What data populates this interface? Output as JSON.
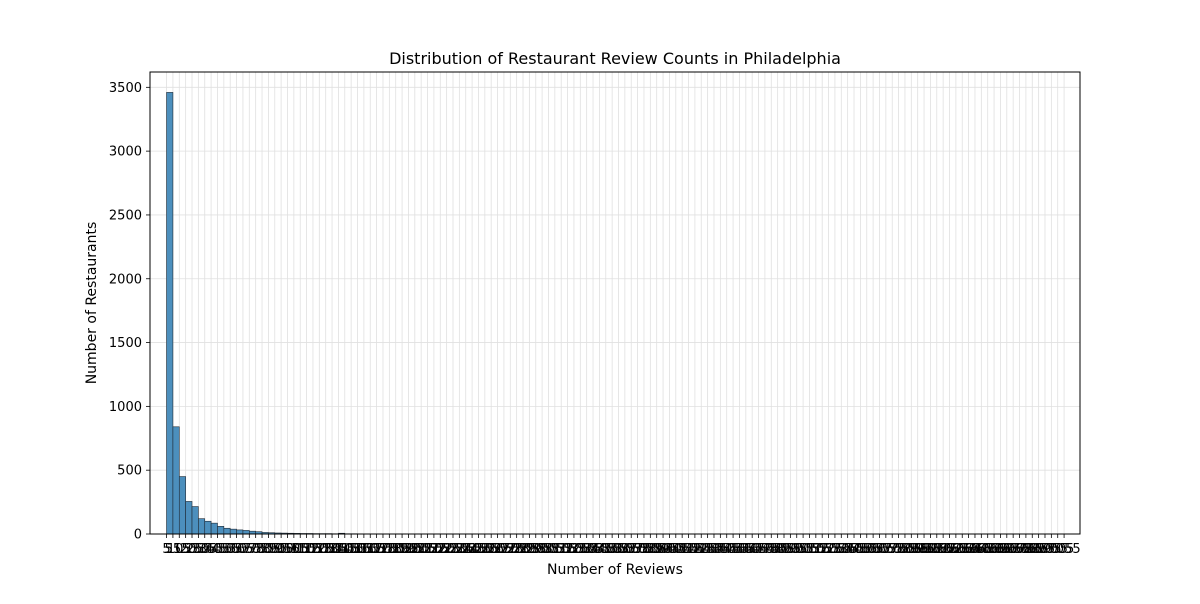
{
  "chart_data": {
    "type": "bar",
    "title": "Distribution of Restaurant Review Counts in Philadelphia",
    "xlabel": "Number of Reviews",
    "ylabel": "Number of Restaurants",
    "bin_width": 50,
    "x_start": 5,
    "x_end": 7050,
    "ylim": [
      0,
      3620
    ],
    "yticks": [
      0,
      500,
      1000,
      1500,
      2000,
      2500,
      3000,
      3500
    ],
    "grid": true,
    "legend": "none",
    "bar_color": "#4c8fbd",
    "bar_edge_color": "#1f2a35",
    "grid_color": "#e0e0e0",
    "values": [
      3460,
      840,
      450,
      255,
      215,
      120,
      100,
      85,
      60,
      45,
      38,
      32,
      28,
      22,
      18,
      12,
      10,
      8,
      7,
      6,
      5,
      4,
      4,
      3,
      3,
      3,
      2,
      6,
      2,
      2,
      1,
      1,
      1,
      1,
      1,
      1,
      1,
      0,
      1,
      0,
      1,
      0,
      0,
      1,
      0,
      0,
      0,
      0,
      1,
      0,
      0,
      0,
      0,
      0,
      0,
      0,
      0,
      0,
      0,
      0,
      0,
      0,
      0,
      0,
      0,
      0,
      0,
      0,
      0,
      0,
      0,
      0,
      0,
      0,
      0,
      0,
      0,
      0,
      0,
      0,
      0,
      0,
      0,
      0,
      0,
      0,
      0,
      0,
      0,
      0,
      0,
      0,
      0,
      0,
      0,
      0,
      0,
      0,
      0,
      0,
      0,
      0,
      0,
      0,
      0,
      0,
      0,
      0,
      0,
      0,
      0,
      0,
      0,
      0,
      0,
      0,
      0,
      0,
      0,
      0,
      0,
      0,
      0,
      0,
      0,
      0,
      0,
      0,
      0,
      0,
      0,
      0,
      0,
      0,
      0,
      0,
      0,
      0,
      0,
      0,
      0
    ]
  }
}
